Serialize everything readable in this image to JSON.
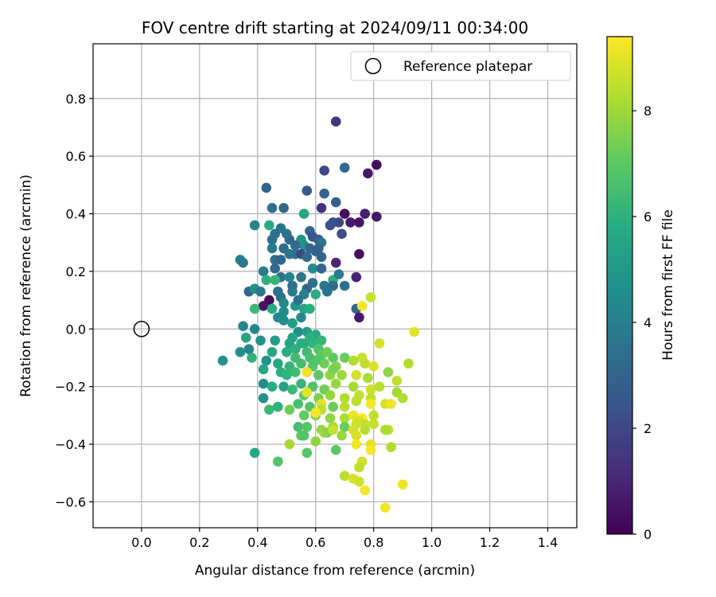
{
  "chart_data": {
    "type": "scatter",
    "title": "FOV centre drift starting at 2024/09/11 00:34:00",
    "xlabel": "Angular distance from reference (arcmin)",
    "ylabel": "Rotation from reference (arcmin)",
    "xlim": [
      -0.167,
      1.5
    ],
    "ylim": [
      -0.69,
      0.99
    ],
    "xticks": [
      0.0,
      0.2,
      0.4,
      0.6,
      0.8,
      1.0,
      1.2,
      1.4
    ],
    "xtick_labels": [
      "0.0",
      "0.2",
      "0.4",
      "0.6",
      "0.8",
      "1.0",
      "1.2",
      "1.4"
    ],
    "yticks": [
      -0.6,
      -0.4,
      -0.2,
      0.0,
      0.2,
      0.4,
      0.6,
      0.8
    ],
    "ytick_labels": [
      "−0.6",
      "−0.4",
      "−0.2",
      "0.0",
      "0.2",
      "0.4",
      "0.6",
      "0.8"
    ],
    "grid": true,
    "legend": {
      "position": "upper right",
      "entries": [
        {
          "label": "Reference platepar",
          "marker": "open-circle"
        }
      ]
    },
    "reference_point": {
      "x": 0.0,
      "y": 0.0
    },
    "colorbar": {
      "label": "Hours from first FF file",
      "colormap": "viridis",
      "range": [
        0,
        9.4
      ],
      "ticks": [
        0,
        2,
        4,
        6,
        8
      ],
      "tick_labels": [
        "0",
        "2",
        "4",
        "6",
        "8"
      ]
    },
    "points": [
      [
        0.67,
        0.72,
        1.4
      ],
      [
        0.81,
        0.57,
        0.3
      ],
      [
        0.78,
        0.54,
        0.6
      ],
      [
        0.63,
        0.55,
        2.0
      ],
      [
        0.7,
        0.56,
        3.3
      ],
      [
        0.43,
        0.49,
        3.1
      ],
      [
        0.57,
        0.48,
        2.6
      ],
      [
        0.63,
        0.47,
        3.0
      ],
      [
        0.67,
        0.44,
        2.9
      ],
      [
        0.62,
        0.42,
        1.3
      ],
      [
        0.45,
        0.42,
        3.4
      ],
      [
        0.49,
        0.42,
        3.2
      ],
      [
        0.7,
        0.4,
        0.3
      ],
      [
        0.77,
        0.4,
        0.8
      ],
      [
        0.81,
        0.39,
        0.6
      ],
      [
        0.56,
        0.4,
        5.5
      ],
      [
        0.66,
        0.37,
        2.0
      ],
      [
        0.68,
        0.37,
        2.1
      ],
      [
        0.72,
        0.37,
        0.7
      ],
      [
        0.75,
        0.37,
        0.5
      ],
      [
        0.39,
        0.36,
        4.2
      ],
      [
        0.44,
        0.36,
        5.7
      ],
      [
        0.46,
        0.33,
        3.5
      ],
      [
        0.48,
        0.35,
        3.6
      ],
      [
        0.51,
        0.31,
        3.2
      ],
      [
        0.58,
        0.34,
        3.0
      ],
      [
        0.59,
        0.32,
        2.5
      ],
      [
        0.61,
        0.31,
        2.7
      ],
      [
        0.62,
        0.3,
        3.6
      ],
      [
        0.55,
        0.31,
        4.9
      ],
      [
        0.56,
        0.29,
        4.6
      ],
      [
        0.53,
        0.26,
        3.7
      ],
      [
        0.45,
        0.28,
        3.8
      ],
      [
        0.49,
        0.28,
        3.3
      ],
      [
        0.61,
        0.28,
        3.1
      ],
      [
        0.6,
        0.27,
        3.0
      ],
      [
        0.69,
        0.33,
        2.2
      ],
      [
        0.75,
        0.26,
        0.4
      ],
      [
        0.34,
        0.24,
        4.1
      ],
      [
        0.46,
        0.24,
        3.5
      ],
      [
        0.48,
        0.24,
        3.0
      ],
      [
        0.51,
        0.26,
        3.6
      ],
      [
        0.55,
        0.26,
        2.1
      ],
      [
        0.57,
        0.25,
        3.3
      ],
      [
        0.67,
        0.23,
        1.0
      ],
      [
        0.35,
        0.23,
        3.7
      ],
      [
        0.46,
        0.21,
        3.2
      ],
      [
        0.42,
        0.2,
        3.9
      ],
      [
        0.59,
        0.21,
        4.6
      ],
      [
        0.62,
        0.21,
        3.0
      ],
      [
        0.48,
        0.18,
        3.5
      ],
      [
        0.51,
        0.18,
        4.2
      ],
      [
        0.55,
        0.18,
        3.6
      ],
      [
        0.66,
        0.17,
        5.9
      ],
      [
        0.68,
        0.19,
        3.8
      ],
      [
        0.74,
        0.18,
        0.9
      ],
      [
        0.43,
        0.17,
        6.0
      ],
      [
        0.46,
        0.17,
        6.2
      ],
      [
        0.52,
        0.15,
        3.3
      ],
      [
        0.57,
        0.14,
        3.0
      ],
      [
        0.63,
        0.15,
        3.7
      ],
      [
        0.66,
        0.15,
        3.2
      ],
      [
        0.7,
        0.15,
        3.5
      ],
      [
        0.37,
        0.13,
        3.0
      ],
      [
        0.39,
        0.14,
        4.8
      ],
      [
        0.41,
        0.13,
        3.7
      ],
      [
        0.44,
        0.1,
        0.3
      ],
      [
        0.48,
        0.11,
        3.5
      ],
      [
        0.52,
        0.13,
        3.8
      ],
      [
        0.56,
        0.12,
        4.0
      ],
      [
        0.6,
        0.12,
        5.8
      ],
      [
        0.64,
        0.13,
        3.6
      ],
      [
        0.42,
        0.08,
        0.5
      ],
      [
        0.45,
        0.07,
        5.7
      ],
      [
        0.49,
        0.09,
        4.4
      ],
      [
        0.53,
        0.08,
        5.0
      ],
      [
        0.56,
        0.07,
        5.4
      ],
      [
        0.58,
        0.07,
        5.9
      ],
      [
        0.74,
        0.07,
        3.0
      ],
      [
        0.76,
        0.08,
        9.3
      ],
      [
        0.79,
        0.11,
        8.6
      ],
      [
        0.39,
        0.07,
        6.3
      ],
      [
        0.47,
        0.04,
        4.3
      ],
      [
        0.49,
        0.03,
        4.6
      ],
      [
        0.52,
        0.02,
        5.2
      ],
      [
        0.55,
        0.04,
        4.4
      ],
      [
        0.75,
        0.04,
        0.6
      ],
      [
        0.35,
        0.01,
        4.3
      ],
      [
        0.39,
        0.0,
        4.4
      ],
      [
        0.54,
        -0.01,
        4.6
      ],
      [
        0.57,
        -0.01,
        5.2
      ],
      [
        0.6,
        -0.02,
        5.7
      ],
      [
        0.94,
        -0.01,
        9.0
      ],
      [
        0.36,
        -0.03,
        5.5
      ],
      [
        0.41,
        -0.04,
        4.7
      ],
      [
        0.46,
        -0.04,
        5.2
      ],
      [
        0.51,
        -0.05,
        5.4
      ],
      [
        0.55,
        -0.05,
        5.8
      ],
      [
        0.59,
        -0.05,
        6.1
      ],
      [
        0.62,
        -0.04,
        6.2
      ],
      [
        0.82,
        -0.05,
        8.8
      ],
      [
        0.34,
        -0.08,
        4.5
      ],
      [
        0.37,
        -0.07,
        4.3
      ],
      [
        0.45,
        -0.08,
        5.5
      ],
      [
        0.5,
        -0.08,
        5.8
      ],
      [
        0.53,
        -0.07,
        6.0
      ],
      [
        0.57,
        -0.08,
        6.4
      ],
      [
        0.61,
        -0.07,
        6.8
      ],
      [
        0.66,
        -0.1,
        7.0
      ],
      [
        0.7,
        -0.1,
        7.2
      ],
      [
        0.76,
        -0.1,
        8.6
      ],
      [
        0.28,
        -0.11,
        4.8
      ],
      [
        0.38,
        -0.1,
        6.0
      ],
      [
        0.43,
        -0.11,
        4.8
      ],
      [
        0.47,
        -0.12,
        5.6
      ],
      [
        0.51,
        -0.13,
        6.1
      ],
      [
        0.55,
        -0.12,
        6.5
      ],
      [
        0.59,
        -0.13,
        6.9
      ],
      [
        0.63,
        -0.12,
        7.3
      ],
      [
        0.67,
        -0.13,
        7.6
      ],
      [
        0.73,
        -0.11,
        8.3
      ],
      [
        0.77,
        -0.12,
        8.5
      ],
      [
        0.8,
        -0.13,
        8.9
      ],
      [
        0.92,
        -0.12,
        8.3
      ],
      [
        0.42,
        -0.14,
        5.5
      ],
      [
        0.48,
        -0.15,
        5.9
      ],
      [
        0.53,
        -0.15,
        6.4
      ],
      [
        0.57,
        -0.15,
        9.2
      ],
      [
        0.61,
        -0.16,
        7.0
      ],
      [
        0.65,
        -0.16,
        7.8
      ],
      [
        0.69,
        -0.16,
        8.0
      ],
      [
        0.74,
        -0.16,
        8.8
      ],
      [
        0.78,
        -0.17,
        8.2
      ],
      [
        0.85,
        -0.15,
        7.8
      ],
      [
        0.42,
        -0.19,
        4.6
      ],
      [
        0.45,
        -0.2,
        5.8
      ],
      [
        0.49,
        -0.2,
        5.4
      ],
      [
        0.55,
        -0.19,
        6.2
      ],
      [
        0.59,
        -0.2,
        6.7
      ],
      [
        0.63,
        -0.21,
        7.3
      ],
      [
        0.67,
        -0.19,
        7.9
      ],
      [
        0.73,
        -0.2,
        8.1
      ],
      [
        0.79,
        -0.21,
        8.7
      ],
      [
        0.82,
        -0.2,
        8.4
      ],
      [
        0.88,
        -0.18,
        8.5
      ],
      [
        0.42,
        -0.24,
        4.7
      ],
      [
        0.52,
        -0.21,
        6.3
      ],
      [
        0.56,
        -0.23,
        7.0
      ],
      [
        0.57,
        -0.22,
        9.0
      ],
      [
        0.61,
        -0.24,
        7.5
      ],
      [
        0.65,
        -0.23,
        7.9
      ],
      [
        0.7,
        -0.24,
        8.3
      ],
      [
        0.75,
        -0.23,
        8.5
      ],
      [
        0.79,
        -0.24,
        8.5
      ],
      [
        0.88,
        -0.22,
        8.1
      ],
      [
        0.9,
        -0.24,
        8.3
      ],
      [
        0.44,
        -0.28,
        6.3
      ],
      [
        0.47,
        -0.27,
        6.0
      ],
      [
        0.51,
        -0.28,
        7.3
      ],
      [
        0.54,
        -0.26,
        6.6
      ],
      [
        0.58,
        -0.27,
        6.8
      ],
      [
        0.62,
        -0.26,
        9.0
      ],
      [
        0.62,
        -0.28,
        8.4
      ],
      [
        0.66,
        -0.27,
        7.2
      ],
      [
        0.7,
        -0.27,
        8.4
      ],
      [
        0.74,
        -0.25,
        8.4
      ],
      [
        0.79,
        -0.26,
        9.3
      ],
      [
        0.84,
        -0.26,
        8.8
      ],
      [
        0.86,
        -0.26,
        9.2
      ],
      [
        0.56,
        -0.3,
        7.1
      ],
      [
        0.6,
        -0.3,
        7.6
      ],
      [
        0.6,
        -0.29,
        9.3
      ],
      [
        0.65,
        -0.31,
        7.8
      ],
      [
        0.7,
        -0.31,
        8.2
      ],
      [
        0.73,
        -0.3,
        9.1
      ],
      [
        0.76,
        -0.31,
        9.4
      ],
      [
        0.8,
        -0.3,
        8.5
      ],
      [
        0.75,
        -0.32,
        8.9
      ],
      [
        0.74,
        -0.33,
        8.7
      ],
      [
        0.77,
        -0.33,
        8.6
      ],
      [
        0.54,
        -0.34,
        6.5
      ],
      [
        0.57,
        -0.34,
        6.9
      ],
      [
        0.62,
        -0.35,
        7.9
      ],
      [
        0.66,
        -0.34,
        8.1
      ],
      [
        0.7,
        -0.34,
        7.2
      ],
      [
        0.73,
        -0.35,
        8.8
      ],
      [
        0.77,
        -0.35,
        8.4
      ],
      [
        0.8,
        -0.33,
        8.6
      ],
      [
        0.85,
        -0.35,
        8.5
      ],
      [
        0.55,
        -0.37,
        7.0
      ],
      [
        0.56,
        -0.37,
        6.8
      ],
      [
        0.63,
        -0.36,
        8.0
      ],
      [
        0.64,
        -0.36,
        7.7
      ],
      [
        0.66,
        -0.35,
        8.6
      ],
      [
        0.69,
        -0.37,
        7.9
      ],
      [
        0.74,
        -0.37,
        8.8
      ],
      [
        0.84,
        -0.35,
        8.2
      ],
      [
        0.51,
        -0.4,
        8.1
      ],
      [
        0.6,
        -0.39,
        7.8
      ],
      [
        0.74,
        -0.4,
        9.2
      ],
      [
        0.79,
        -0.4,
        9.0
      ],
      [
        0.79,
        -0.42,
        9.3
      ],
      [
        0.39,
        -0.43,
        5.6
      ],
      [
        0.57,
        -0.43,
        6.9
      ],
      [
        0.67,
        -0.42,
        7.0
      ],
      [
        0.86,
        -0.41,
        8.3
      ],
      [
        0.47,
        -0.46,
        6.8
      ],
      [
        0.76,
        -0.46,
        8.8
      ],
      [
        0.75,
        -0.48,
        8.5
      ],
      [
        0.7,
        -0.51,
        8.4
      ],
      [
        0.73,
        -0.52,
        8.9
      ],
      [
        0.75,
        -0.53,
        8.7
      ],
      [
        0.77,
        -0.56,
        9.3
      ],
      [
        0.9,
        -0.54,
        9.2
      ],
      [
        0.84,
        -0.62,
        9.2
      ],
      [
        0.58,
        -0.1,
        6.6
      ],
      [
        0.6,
        -0.11,
        6.8
      ],
      [
        0.62,
        -0.09,
        6.9
      ],
      [
        0.64,
        -0.08,
        7.3
      ],
      [
        0.66,
        -0.14,
        7.5
      ],
      [
        0.52,
        -0.03,
        5.5
      ],
      [
        0.5,
        -0.16,
        6.1
      ],
      [
        0.53,
        -0.1,
        6.4
      ],
      [
        0.56,
        -0.05,
        5.9
      ],
      [
        0.58,
        -0.03,
        6.0
      ],
      [
        0.45,
        0.31,
        3.4
      ],
      [
        0.5,
        0.33,
        3.6
      ],
      [
        0.53,
        0.29,
        3.3
      ],
      [
        0.58,
        0.28,
        3.1
      ],
      [
        0.65,
        0.36,
        2.3
      ],
      [
        0.47,
        0.13,
        3.4
      ],
      [
        0.54,
        0.1,
        3.5
      ],
      [
        0.59,
        0.16,
        3.4
      ],
      [
        0.62,
        0.25,
        3.0
      ],
      [
        0.49,
        0.06,
        4.6
      ]
    ]
  }
}
